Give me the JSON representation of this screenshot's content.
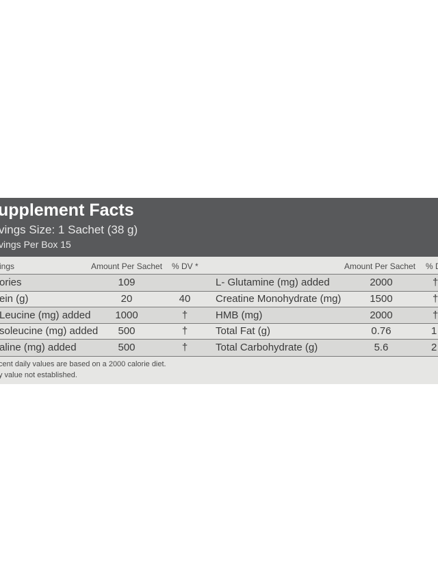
{
  "panel": {
    "title": "upplement Facts",
    "serving_size": "vings Size: 1 Sachet (38 g)",
    "servings_per": "vings Per Box 15"
  },
  "columns": {
    "left_name": "ings",
    "left_amount": "Amount Per Sachet",
    "left_dv": "% DV *",
    "right_amount": "Amount Per Sachet",
    "right_dv": "% D"
  },
  "left_rows": [
    {
      "name": "ories",
      "amount": "109",
      "dv": ""
    },
    {
      "name": "ein (g)",
      "amount": "20",
      "dv": "40"
    },
    {
      "name": "Leucine (mg) added",
      "amount": "1000",
      "dv": "†"
    },
    {
      "name": "soleucine (mg) added",
      "amount": "500",
      "dv": "†"
    },
    {
      "name": "aline (mg) added",
      "amount": "500",
      "dv": "†"
    }
  ],
  "right_rows": [
    {
      "name": "L- Glutamine (mg) added",
      "amount": "2000",
      "dv": "†"
    },
    {
      "name": "Creatine Monohydrate (mg)",
      "amount": "1500",
      "dv": "†"
    },
    {
      "name": "HMB (mg)",
      "amount": "2000",
      "dv": "†"
    },
    {
      "name": "Total Fat (g)",
      "amount": "0.76",
      "dv": "1"
    },
    {
      "name": "Total Carbohydrate (g)",
      "amount": "5.6",
      "dv": "2"
    }
  ],
  "footnotes": {
    "line1": "cent daily values are based on a 2000 calorie diet.",
    "line2": "y value not established."
  }
}
